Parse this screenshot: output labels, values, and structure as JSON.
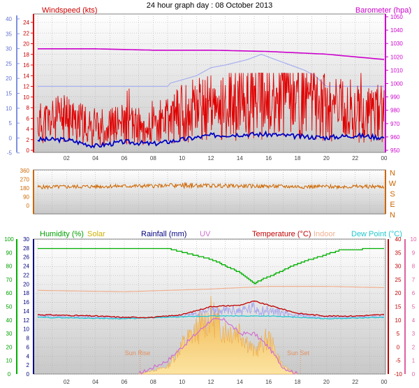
{
  "title": "24 hour graph day : 08 October 2013",
  "x_ticks": [
    "02",
    "04",
    "06",
    "08",
    "10",
    "12",
    "14",
    "16",
    "18",
    "20",
    "22",
    "00"
  ],
  "colors": {
    "wind": "#e00000",
    "wind_avg": "#0000c0",
    "barometer": "#cc00cc",
    "wind_dir": "#cc6600",
    "humidity": "#00b000",
    "solar": "#f5b040",
    "rainfall": "#000080",
    "uv": "#d070d0",
    "temperature": "#c00000",
    "indoor": "#f0b090",
    "dew_point": "#20c8d0",
    "temp_band": "#a8a8f0",
    "left_axis_a": "#8090e0",
    "left_axis_b": "#00b000",
    "right_axis_c": "#e060a0"
  },
  "charts": {
    "wind_baro": {
      "label_wind": "Windspeed (kts)",
      "label_baro": "Barometer (hpa)",
      "left_outer_ticks": [
        "40",
        "35",
        "30",
        "25",
        "20",
        "15",
        "10",
        "5",
        "0",
        "-5"
      ],
      "left_inner_ticks": [
        "24",
        "22",
        "20",
        "18",
        "16",
        "14",
        "12",
        "10",
        "8",
        "6",
        "4",
        "2",
        "0"
      ],
      "right_ticks": [
        "1050",
        "1040",
        "1030",
        "1020",
        "1010",
        "1000",
        "990",
        "980",
        "970",
        "960",
        "950"
      ]
    },
    "direction": {
      "left_ticks": [
        "360",
        "270",
        "180",
        "90",
        "0"
      ],
      "right_labels": [
        "N",
        "W",
        "S",
        "E",
        "N"
      ]
    },
    "multi": {
      "labels": {
        "humidity": "Humidity  (%)",
        "solar": "Solar",
        "rainfall": "Rainfall (mm)",
        "uv": "UV",
        "temperature": "Temperature (°C)",
        "indoor": "Indoor",
        "dew_point": "Dew Point (°C)"
      },
      "left_outer_ticks": [
        "100",
        "90",
        "80",
        "70",
        "60",
        "50",
        "40",
        "30",
        "20",
        "10",
        "0"
      ],
      "left_inner_ticks": [
        "30",
        "28",
        "26",
        "24",
        "22",
        "20",
        "18",
        "16",
        "14",
        "12",
        "10",
        "8",
        "6",
        "4",
        "2",
        "0"
      ],
      "right_inner_ticks": [
        "40",
        "35",
        "30",
        "25",
        "20",
        "15",
        "10",
        "5",
        "0",
        "-5",
        "-10"
      ],
      "right_outer_ticks": [
        "10",
        "9",
        "8",
        "7",
        "6",
        "5",
        "4",
        "3",
        "2",
        "1",
        "0"
      ],
      "sun_rise": "Sun Rise",
      "sun_set": "Sun Set"
    }
  },
  "chart_data": [
    {
      "type": "line",
      "title": "Windspeed (kts) / Barometer (hpa)",
      "x_hours": [
        0,
        24
      ],
      "ylim_wind": [
        0,
        25
      ],
      "ylim_baro": [
        950,
        1050
      ],
      "series": [
        {
          "name": "Windspeed (kts)",
          "x": [
            0,
            2,
            4,
            6,
            8,
            10,
            12,
            14,
            16,
            18,
            20,
            22,
            24
          ],
          "values": [
            5,
            6,
            4,
            5,
            4,
            7,
            8,
            9,
            9,
            10,
            8,
            7,
            7
          ]
        },
        {
          "name": "Barometer (hpa)",
          "x": [
            0,
            4,
            8,
            12,
            16,
            20,
            22,
            24
          ],
          "values": [
            1026,
            1026,
            1025,
            1025,
            1024,
            1022,
            1020,
            1018
          ]
        }
      ]
    },
    {
      "type": "line",
      "title": "Wind direction",
      "ylim": [
        0,
        360
      ],
      "series": [
        {
          "name": "Direction",
          "x": [
            0,
            6,
            12,
            18,
            24
          ],
          "values": [
            190,
            200,
            205,
            195,
            195
          ]
        }
      ]
    },
    {
      "type": "line",
      "title": "Humidity / Solar / Rainfall / UV / Temperature / Indoor / Dew Point",
      "series": [
        {
          "name": "Humidity  (%)",
          "x": [
            0,
            6,
            9,
            12,
            14,
            15,
            15.5,
            16,
            18,
            21,
            24
          ],
          "values": [
            93,
            93,
            93,
            85,
            75,
            67,
            70,
            72,
            82,
            92,
            93
          ]
        },
        {
          "name": "Temperature (°C)",
          "x": [
            0,
            4,
            6,
            8,
            10,
            12,
            14,
            15,
            16,
            18,
            20,
            22,
            24
          ],
          "values": [
            12,
            11.5,
            11,
            11,
            12,
            15,
            15.5,
            17,
            15.5,
            12.5,
            11.5,
            11.5,
            12
          ]
        },
        {
          "name": "Dew Point (°C)",
          "x": [
            0,
            6,
            12,
            16,
            20,
            24
          ],
          "values": [
            11,
            10.5,
            11.5,
            11.5,
            10.5,
            11
          ]
        },
        {
          "name": "Indoor",
          "x": [
            0,
            6,
            12,
            16,
            20,
            24
          ],
          "values": [
            21,
            20.5,
            21.5,
            22.5,
            22.5,
            22
          ]
        },
        {
          "name": "Solar",
          "x": [
            7,
            9,
            10,
            11,
            12,
            13,
            14,
            15,
            16,
            17,
            18
          ],
          "values": [
            0,
            1,
            4,
            6,
            8,
            6,
            6,
            3,
            5,
            1,
            0
          ]
        },
        {
          "name": "UV",
          "x": [
            7,
            9,
            11,
            12,
            13,
            14,
            15,
            16,
            17,
            18
          ],
          "values": [
            0,
            1,
            3,
            4,
            4,
            3,
            3,
            2,
            0.5,
            0
          ]
        }
      ]
    }
  ]
}
